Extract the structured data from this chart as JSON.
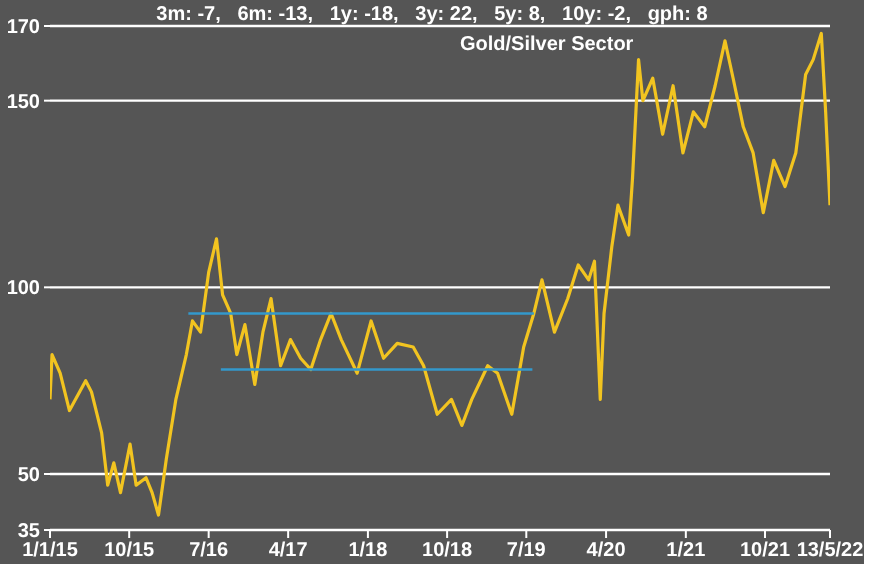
{
  "chart_data": {
    "type": "line",
    "title": "Gold/Silver Sector",
    "subtitle": "3m: -7,   6m: -13,   1y: -18,   3y: 22,   5y: 8,   10y: -2,   gph: 8",
    "x": [
      "2015-01-01",
      "2015-01-08",
      "2015-02-05",
      "2015-03-09",
      "2015-05-04",
      "2015-05-24",
      "2015-06-28",
      "2015-07-19",
      "2015-08-09",
      "2015-09-01",
      "2015-10-04",
      "2015-10-25",
      "2015-11-28",
      "2015-12-19",
      "2016-01-10",
      "2016-02-06",
      "2016-03-10",
      "2016-04-15",
      "2016-05-06",
      "2016-06-03",
      "2016-07-01",
      "2016-07-28",
      "2016-08-18",
      "2016-09-15",
      "2016-10-06",
      "2016-11-03",
      "2016-12-07",
      "2017-01-04",
      "2017-02-01",
      "2017-03-06",
      "2017-04-09",
      "2017-05-14",
      "2017-06-18",
      "2017-07-22",
      "2017-08-27",
      "2017-10-01",
      "2017-11-25",
      "2018-01-12",
      "2018-02-24",
      "2018-04-12",
      "2018-06-06",
      "2018-07-12",
      "2018-08-28",
      "2018-10-16",
      "2018-11-21",
      "2018-12-25",
      "2019-02-18",
      "2019-03-24",
      "2019-05-12",
      "2019-06-22",
      "2019-07-27",
      "2019-08-24",
      "2019-10-06",
      "2019-11-21",
      "2019-12-27",
      "2020-02-01",
      "2020-02-21",
      "2020-03-12",
      "2020-03-25",
      "2020-04-21",
      "2020-05-12",
      "2020-06-18",
      "2020-07-01",
      "2020-07-22",
      "2020-08-06",
      "2020-09-09",
      "2020-10-13",
      "2020-11-18",
      "2020-12-22",
      "2021-01-27",
      "2021-03-07",
      "2021-04-12",
      "2021-05-16",
      "2021-06-13",
      "2021-07-18",
      "2021-08-21",
      "2021-09-25",
      "2021-10-31",
      "2021-12-09",
      "2022-01-15",
      "2022-02-18",
      "2022-03-16",
      "2022-04-13",
      "2022-04-28",
      "2022-05-13"
    ],
    "series": [
      {
        "color": "#f2c420",
        "values": [
          70,
          82,
          77,
          67,
          75,
          72,
          61,
          47,
          53,
          45,
          58,
          47,
          49,
          45,
          39,
          54,
          70,
          82,
          91,
          88,
          104,
          113,
          98,
          93,
          82,
          90,
          74,
          88,
          97,
          79,
          86,
          81,
          78,
          86,
          93,
          86,
          77,
          91,
          81,
          85,
          84,
          79,
          66,
          70,
          63,
          70,
          79,
          77,
          66,
          84,
          93,
          102,
          88,
          97,
          106,
          102,
          107,
          70,
          93,
          111,
          122,
          114,
          129,
          161,
          150,
          156,
          141,
          154,
          136,
          147,
          143,
          154,
          166,
          156,
          143,
          136,
          120,
          134,
          127,
          136,
          157,
          161,
          168,
          147,
          122
        ]
      },
      {
        "type": "line",
        "color": "#3399cc",
        "x": [
          "2016-04-22",
          "2019-07-27"
        ],
        "values": [
          93,
          93
        ]
      },
      {
        "type": "line",
        "color": "#3399cc",
        "x": [
          "2016-08-12",
          "2019-07-22"
        ],
        "values": [
          78,
          78
        ]
      }
    ],
    "xlim": [
      "2015-01-01",
      "2022-05-13"
    ],
    "xticks": [
      {
        "value": "2015-01-01",
        "label": "1/1/15"
      },
      {
        "value": "2015-10-01",
        "label": "10/15"
      },
      {
        "value": "2016-07-01",
        "label": "7/16"
      },
      {
        "value": "2017-04-01",
        "label": "4/17"
      },
      {
        "value": "2018-01-01",
        "label": "1/18"
      },
      {
        "value": "2018-10-01",
        "label": "10/18"
      },
      {
        "value": "2019-07-01",
        "label": "7/19"
      },
      {
        "value": "2020-04-01",
        "label": "4/20"
      },
      {
        "value": "2021-01-01",
        "label": "1/21"
      },
      {
        "value": "2021-10-01",
        "label": "10/21"
      },
      {
        "value": "2022-05-13",
        "label": "13/5/22"
      }
    ],
    "ylim": [
      35,
      170
    ],
    "yticks": [
      35,
      50,
      100,
      150,
      170
    ],
    "grid": "y",
    "marker": "none",
    "line_style": "solid"
  }
}
